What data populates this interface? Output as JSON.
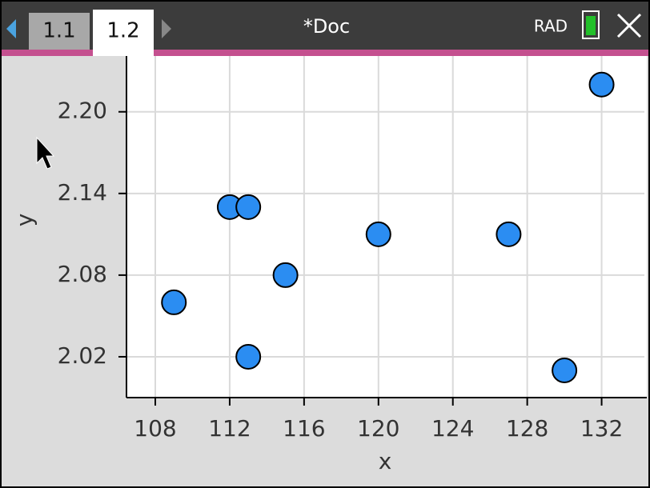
{
  "header": {
    "tabs": [
      "1.1",
      "1.2"
    ],
    "title": "*Doc",
    "mode": "RAD"
  },
  "chart_data": {
    "type": "scatter",
    "x_label": "x",
    "y_label": "y",
    "x": [
      109,
      112,
      113,
      113,
      115,
      120,
      127,
      130,
      132
    ],
    "values": [
      2.06,
      2.13,
      2.13,
      2.02,
      2.08,
      2.11,
      2.11,
      2.01,
      2.22
    ],
    "color": "#2b8df2",
    "xlim": [
      106.45,
      134.3
    ],
    "xticks": [
      108,
      112,
      116,
      120,
      124,
      128,
      132
    ],
    "ylim": [
      1.99,
      2.241
    ],
    "yticks": [
      {
        "value": 2.2,
        "label": "2.20"
      },
      2.14,
      2.08,
      2.02
    ],
    "grid": true
  }
}
